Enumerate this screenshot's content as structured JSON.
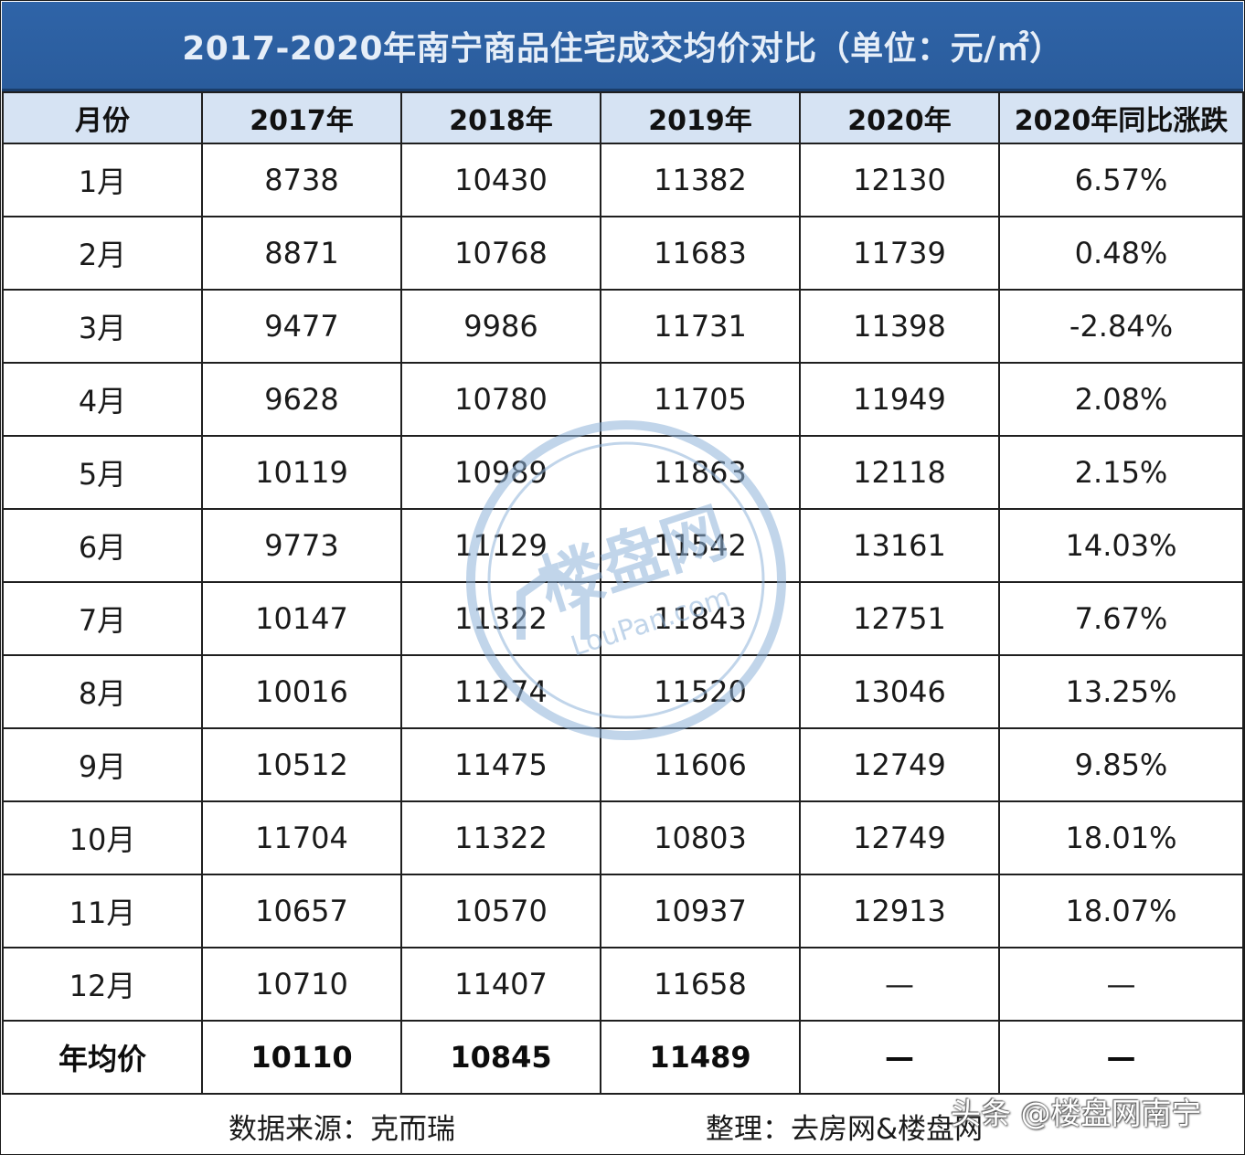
{
  "title": "2017-2020年南宁商品住宅成交均价对比（单位：元/㎡）",
  "headers": [
    "月份",
    "2017年",
    "2018年",
    "2019年",
    "2020年",
    "2020年同比涨跌"
  ],
  "rows": [
    [
      "1月",
      "8738",
      "10430",
      "11382",
      "12130",
      "6.57%"
    ],
    [
      "2月",
      "8871",
      "10768",
      "11683",
      "11739",
      "0.48%"
    ],
    [
      "3月",
      "9477",
      "9986",
      "11731",
      "11398",
      "-2.84%"
    ],
    [
      "4月",
      "9628",
      "10780",
      "11705",
      "11949",
      "2.08%"
    ],
    [
      "5月",
      "10119",
      "10989",
      "11863",
      "12118",
      "2.15%"
    ],
    [
      "6月",
      "9773",
      "11129",
      "11542",
      "13161",
      "14.03%"
    ],
    [
      "7月",
      "10147",
      "11322",
      "11843",
      "12751",
      "7.67%"
    ],
    [
      "8月",
      "10016",
      "11274",
      "11520",
      "13046",
      "13.25%"
    ],
    [
      "9月",
      "10512",
      "11475",
      "11606",
      "12749",
      "9.85%"
    ],
    [
      "10月",
      "11704",
      "11322",
      "10803",
      "12749",
      "18.01%"
    ],
    [
      "11月",
      "10657",
      "10570",
      "10937",
      "12913",
      "18.07%"
    ],
    [
      "12月",
      "10710",
      "11407",
      "11658",
      "—",
      "—"
    ]
  ],
  "average_row": [
    "年均价",
    "10110",
    "10845",
    "11489",
    "—",
    "—"
  ],
  "footer": {
    "source": "数据来源：克而瑞",
    "editor": "整理：去房网&楼盘网"
  },
  "attribution": "头条 @楼盘网南宁",
  "watermark": {
    "brand": "楼盘网",
    "domain": "LouPan.com"
  },
  "colors": {
    "title_bg": "#2f64a8",
    "header_bg": "#d6e3f3",
    "title_text": "#e6eef8",
    "watermark": "#8fb3d9"
  }
}
